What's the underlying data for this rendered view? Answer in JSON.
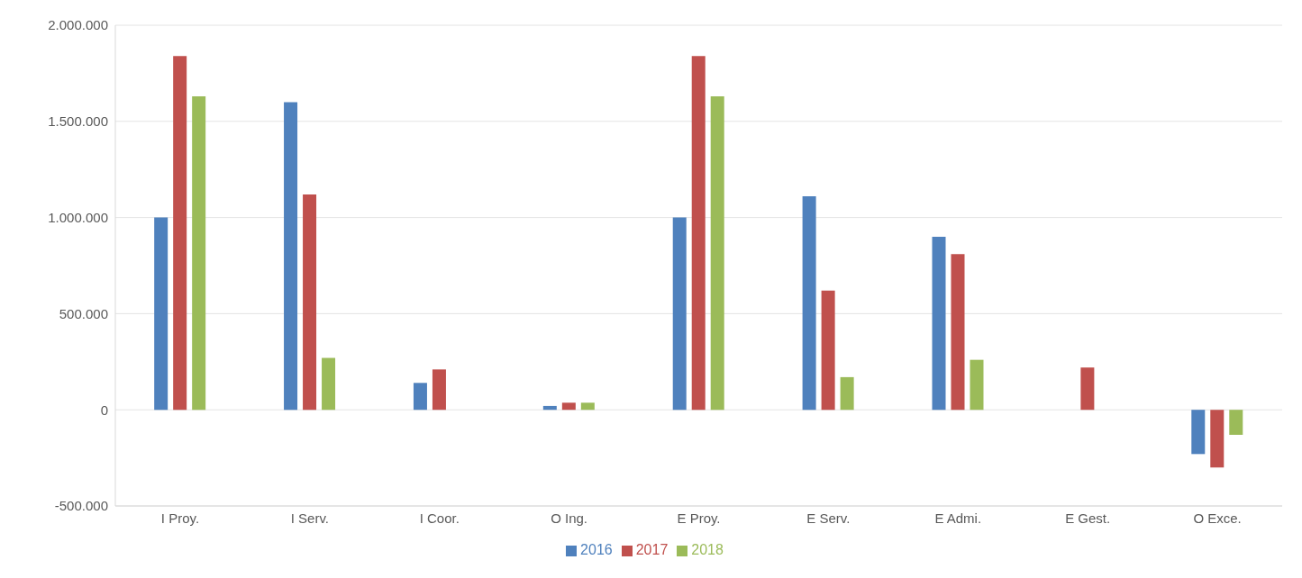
{
  "chart_data": {
    "type": "bar",
    "categories": [
      "I Proy.",
      "I Serv.",
      "I Coor.",
      "O Ing.",
      "E Proy.",
      "E Serv.",
      "E Admi.",
      "E Gest.",
      "O Exce."
    ],
    "series": [
      {
        "name": "2016",
        "color": "#4f81bd",
        "values": [
          1000000,
          1600000,
          140000,
          20000,
          1000000,
          1110000,
          900000,
          null,
          -230000
        ]
      },
      {
        "name": "2017",
        "color": "#c0504d",
        "values": [
          1840000,
          1120000,
          210000,
          37000,
          1840000,
          620000,
          810000,
          220000,
          -300000
        ]
      },
      {
        "name": "2018",
        "color": "#9bbb59",
        "values": [
          1630000,
          270000,
          null,
          37000,
          1630000,
          170000,
          260000,
          null,
          -130000
        ]
      }
    ],
    "ylim": [
      -500000,
      2000000
    ],
    "yticks": [
      {
        "value": -500000,
        "label": "-500.000"
      },
      {
        "value": 0,
        "label": "0"
      },
      {
        "value": 500000,
        "label": "500.000"
      },
      {
        "value": 1000000,
        "label": "1.000.000"
      },
      {
        "value": 1500000,
        "label": "1.500.000"
      },
      {
        "value": 2000000,
        "label": "2.000.000"
      }
    ],
    "grid": "y",
    "legend": "bottom"
  }
}
